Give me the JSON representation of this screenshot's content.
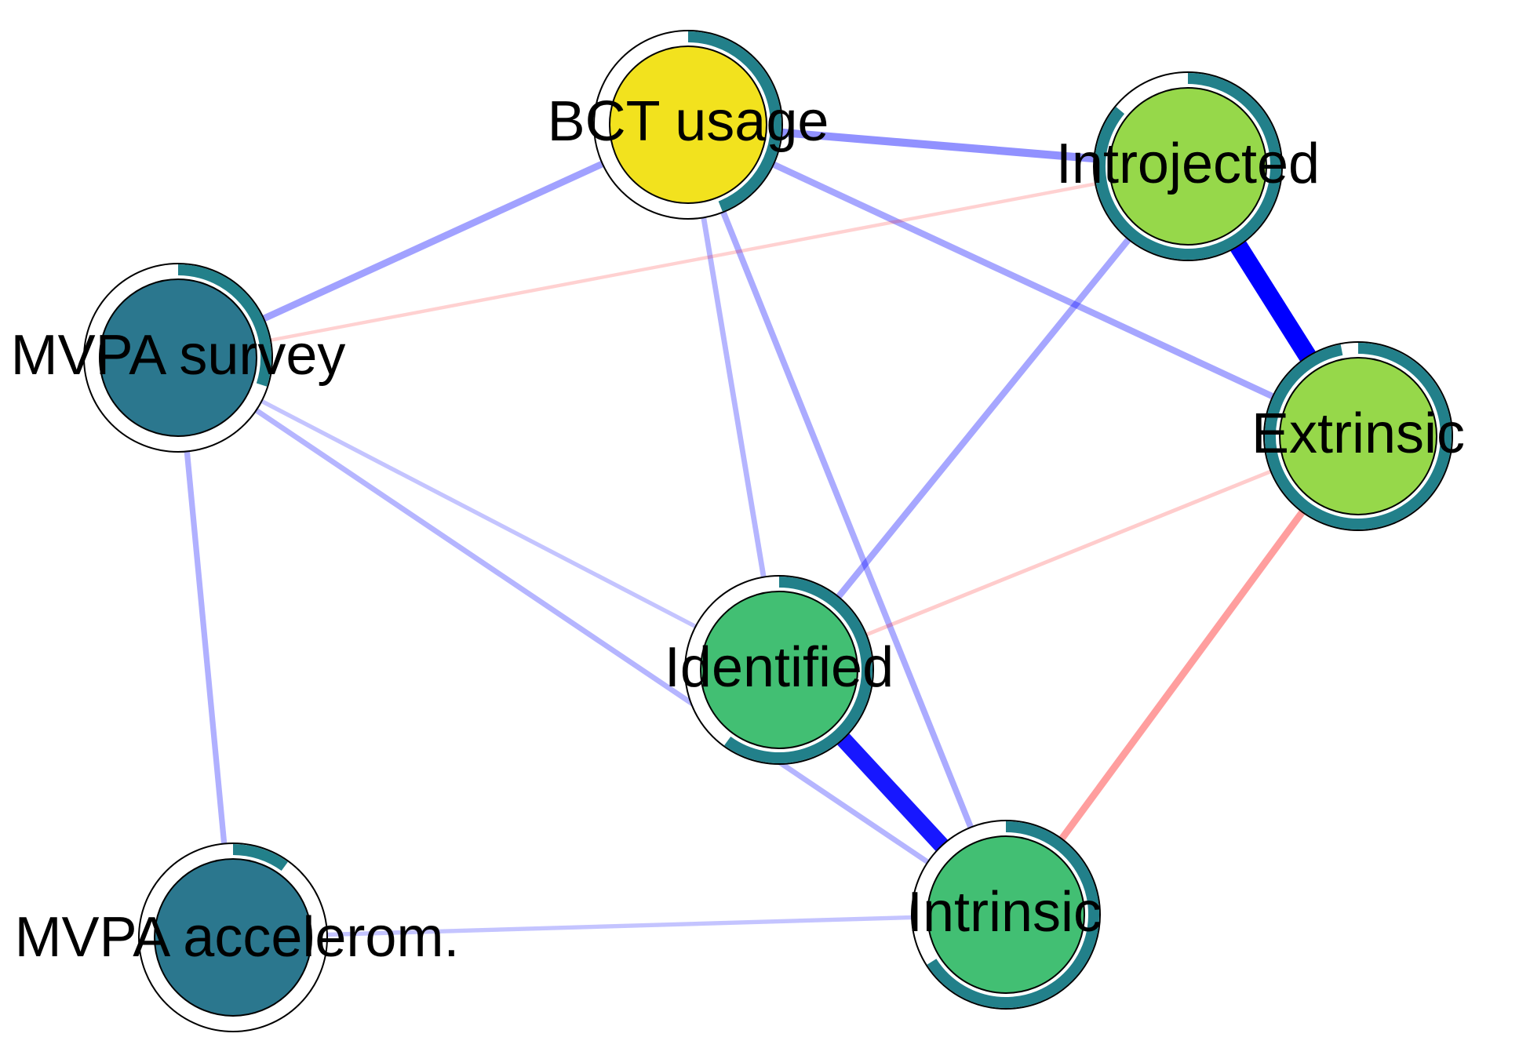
{
  "nodes": [
    {
      "id": "bct",
      "label": "BCT usage",
      "color": "#F2E21E",
      "ring_fraction": 0.44
    },
    {
      "id": "introjected",
      "label": "Introjected",
      "color": "#96D84A",
      "ring_fraction": 0.86
    },
    {
      "id": "mvpa_survey",
      "label": "MVPA survey",
      "color": "#2B778E",
      "ring_fraction": 0.3
    },
    {
      "id": "extrinsic",
      "label": "Extrinsic",
      "color": "#96D84A",
      "ring_fraction": 0.97
    },
    {
      "id": "identified",
      "label": "Identified",
      "color": "#42BF73",
      "ring_fraction": 0.6
    },
    {
      "id": "mvpa_accel",
      "label": "MVPA accelerom.",
      "color": "#2B778E",
      "ring_fraction": 0.1
    },
    {
      "id": "intrinsic",
      "label": "Intrinsic",
      "color": "#42BF73",
      "ring_fraction": 0.66
    }
  ],
  "edges": [
    {
      "from": "bct",
      "to": "introjected",
      "sign": "positive",
      "strength": 0.3
    },
    {
      "from": "bct",
      "to": "mvpa_survey",
      "sign": "positive",
      "strength": 0.24
    },
    {
      "from": "bct",
      "to": "extrinsic",
      "sign": "positive",
      "strength": 0.22
    },
    {
      "from": "bct",
      "to": "identified",
      "sign": "positive",
      "strength": 0.16
    },
    {
      "from": "bct",
      "to": "intrinsic",
      "sign": "positive",
      "strength": 0.2
    },
    {
      "from": "introjected",
      "to": "mvpa_survey",
      "sign": "negative",
      "strength": 0.06
    },
    {
      "from": "introjected",
      "to": "extrinsic",
      "sign": "positive",
      "strength": 0.85
    },
    {
      "from": "introjected",
      "to": "identified",
      "sign": "positive",
      "strength": 0.22
    },
    {
      "from": "mvpa_survey",
      "to": "identified",
      "sign": "positive",
      "strength": 0.1
    },
    {
      "from": "mvpa_survey",
      "to": "intrinsic",
      "sign": "positive",
      "strength": 0.16
    },
    {
      "from": "mvpa_survey",
      "to": "mvpa_accel",
      "sign": "positive",
      "strength": 0.18
    },
    {
      "from": "extrinsic",
      "to": "identified",
      "sign": "negative",
      "strength": 0.08
    },
    {
      "from": "extrinsic",
      "to": "intrinsic",
      "sign": "negative",
      "strength": 0.25
    },
    {
      "from": "identified",
      "to": "intrinsic",
      "sign": "positive",
      "strength": 0.75
    },
    {
      "from": "mvpa_accel",
      "to": "intrinsic",
      "sign": "positive",
      "strength": 0.1
    }
  ],
  "colors": {
    "positive_edge": "#0000FF",
    "negative_edge": "#FF0000",
    "ring": "#22808A",
    "node_border": "#000000"
  }
}
